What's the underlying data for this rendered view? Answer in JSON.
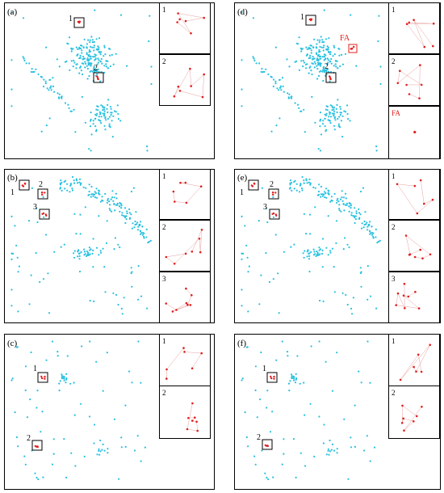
{
  "colors": {
    "star": "#27c0e0",
    "match": "#e02020",
    "link": "#e8a0a0",
    "frame": "#000000",
    "false_alarm": "#e02020"
  },
  "panels": [
    {
      "id": "a",
      "label": "(a)",
      "seed": 11,
      "distribution": "cluster",
      "star_count": 300,
      "candidates": [
        {
          "label": "1"
        },
        {
          "label": "2"
        }
      ],
      "subplots": [
        {
          "label": "1"
        },
        {
          "label": "2"
        }
      ]
    },
    {
      "id": "d",
      "label": "(d)",
      "seed": 11,
      "distribution": "cluster",
      "star_count": 300,
      "candidates": [
        {
          "label": "1"
        },
        {
          "label": "2"
        },
        {
          "label": "FA",
          "false_alarm": true
        }
      ],
      "subplots": [
        {
          "label": "1"
        },
        {
          "label": "2"
        },
        {
          "label": "FA",
          "false_alarm": true
        }
      ]
    },
    {
      "id": "b",
      "label": "(b)",
      "seed": 23,
      "distribution": "arc",
      "star_count": 230,
      "candidates": [
        {
          "label": "1"
        },
        {
          "label": "2"
        },
        {
          "label": "3"
        }
      ],
      "subplots": [
        {
          "label": "1"
        },
        {
          "label": "2"
        },
        {
          "label": "3"
        }
      ]
    },
    {
      "id": "e",
      "label": "(e)",
      "seed": 23,
      "distribution": "arc",
      "star_count": 230,
      "candidates": [
        {
          "label": "1"
        },
        {
          "label": "2"
        },
        {
          "label": "3"
        }
      ],
      "subplots": [
        {
          "label": "1"
        },
        {
          "label": "2"
        },
        {
          "label": "3"
        }
      ]
    },
    {
      "id": "c",
      "label": "(c)",
      "seed": 37,
      "distribution": "sparse",
      "star_count": 90,
      "candidates": [
        {
          "label": "1"
        },
        {
          "label": "2"
        }
      ],
      "subplots": [
        {
          "label": "1"
        },
        {
          "label": "2"
        }
      ]
    },
    {
      "id": "f",
      "label": "(f)",
      "seed": 37,
      "distribution": "sparse",
      "star_count": 90,
      "candidates": [
        {
          "label": "1"
        },
        {
          "label": "2"
        }
      ],
      "subplots": [
        {
          "label": "1"
        },
        {
          "label": "2"
        }
      ]
    }
  ]
}
